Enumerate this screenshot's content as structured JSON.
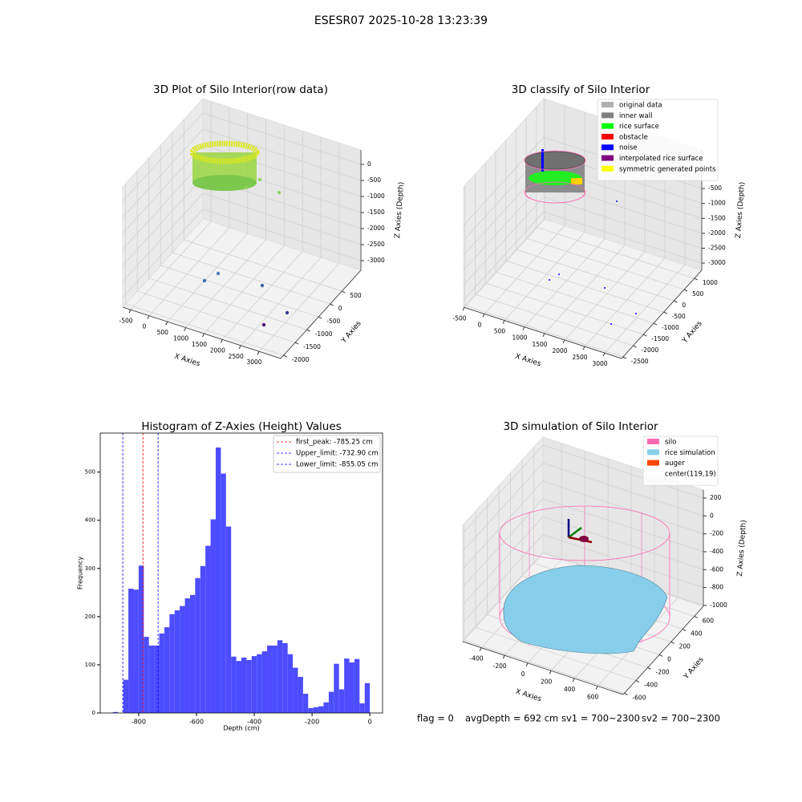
{
  "title": "ESESR07 2025-10-28 13:23:39",
  "status": [
    "flag = 0",
    "avgDepth = 692 cm",
    "sv1 = 700~2300",
    "sv2 = 700~2300"
  ],
  "chart_data": [
    {
      "type": "scatter3d",
      "title": "3D Plot of Silo Interior(row data)",
      "x_label": "X Axies",
      "y_label": "Y Axies",
      "z_label": "Z Axies (Depth)",
      "xlim": [
        -720,
        3590
      ],
      "ylim": [
        -2125,
        1315
      ],
      "zlim": [
        -3300,
        450
      ],
      "xticks": [
        -500,
        0,
        500,
        1000,
        1500,
        2000,
        2500,
        3000
      ],
      "yticks": [
        -2000,
        -1500,
        -1000,
        -500,
        0,
        500
      ],
      "zticks": [
        -3000,
        -2500,
        -2000,
        -1500,
        -1000,
        -500,
        0
      ],
      "grid": true
    },
    {
      "type": "scatter3d",
      "title": "3D classify of Silo Interior",
      "x_label": "X Axies",
      "y_label": "Y Axies",
      "z_label": "Z Axies (Depth)",
      "xlim": [
        -520,
        3420
      ],
      "ylim": [
        -2570,
        1360
      ],
      "zlim": [
        -3240,
        792
      ],
      "xticks": [
        -500,
        0,
        500,
        1000,
        1500,
        2000,
        2500,
        3000
      ],
      "yticks": [
        -2500,
        -2000,
        -1500,
        -1000,
        -500,
        0,
        500,
        1000
      ],
      "zticks": [
        -3000,
        -2500,
        -2000,
        -1500,
        -1000,
        -500
      ],
      "grid": true,
      "legend_loc": "upper right",
      "legend": [
        {
          "name": "original data",
          "color": "#b0b0b0"
        },
        {
          "name": "inner wall",
          "color": "#808080"
        },
        {
          "name": "rice surface",
          "color": "#00ff00"
        },
        {
          "name": "obstacle",
          "color": "#ff0000"
        },
        {
          "name": "noise",
          "color": "#0000ff"
        },
        {
          "name": "interpolated rice surface",
          "color": "#800080"
        },
        {
          "name": "symmetric generated points",
          "color": "#ffff00"
        }
      ]
    },
    {
      "type": "histogram",
      "title": "Histogram of Z-Axies (Height) Values",
      "x_label": "Depth (cm)",
      "y_label": "Frequency",
      "color": "#4d4dff",
      "xlim": [
        -933,
        44
      ],
      "ylim": [
        0,
        581
      ],
      "xticks": [
        -800,
        -600,
        -400,
        -200,
        0
      ],
      "yticks": [
        0,
        100,
        200,
        300,
        400,
        500
      ],
      "bins": [
        -889.0,
        -871.22,
        -853.44,
        -835.66,
        -817.88,
        -800.1,
        -782.32,
        -764.54,
        -746.76,
        -728.98,
        -711.2,
        -693.42,
        -675.64,
        -657.86,
        -640.08,
        -622.3,
        -604.52,
        -586.74,
        -568.96,
        -551.18,
        -533.4,
        -515.62,
        -497.84,
        -480.06,
        -462.28,
        -444.5,
        -426.72,
        -408.94,
        -391.16,
        -373.38,
        -355.6,
        -337.82,
        -320.04,
        -302.26,
        -284.48,
        -266.7,
        -248.92,
        -231.14,
        -213.36,
        -195.58,
        -177.8,
        -160.02,
        -142.24,
        -124.46,
        -106.68,
        -88.9,
        -71.12,
        -53.34,
        -35.56,
        -17.78,
        0
      ],
      "counts": [
        2,
        0,
        69,
        258,
        256,
        306,
        158,
        140,
        140,
        165,
        178,
        205,
        213,
        222,
        238,
        245,
        280,
        305,
        347,
        402,
        551,
        497,
        387,
        117,
        108,
        115,
        110,
        118,
        122,
        128,
        140,
        140,
        151,
        145,
        122,
        94,
        75,
        40,
        10,
        12,
        14,
        22,
        44,
        102,
        49,
        113,
        105,
        112,
        20,
        62
      ],
      "legend_loc": "upper right",
      "vlines": [
        {
          "name": "first_peak: -785.25 cm",
          "value": -785.25,
          "color": "#ff0000"
        },
        {
          "name": "Upper_limit: -732.90 cm",
          "value": -732.9,
          "color": "#0000ff"
        },
        {
          "name": "Lower_limit: -855.05 cm",
          "value": -855.05,
          "color": "#0000ff"
        }
      ]
    },
    {
      "type": "surface3d",
      "title": "3D simulation of Silo Interior",
      "x_label": "X Axies",
      "y_label": "Y Axies",
      "z_label": "Z Axies (Depth)",
      "xlim": [
        -560,
        820
      ],
      "ylim": [
        -620,
        755
      ],
      "zlim": [
        -1010,
        290
      ],
      "xticks": [
        -400,
        -200,
        0,
        200,
        400,
        600
      ],
      "yticks": [
        -600,
        -400,
        -200,
        0,
        200,
        400,
        600
      ],
      "zticks": [
        -1000,
        -800,
        -600,
        -400,
        -200,
        0,
        200
      ],
      "grid": true,
      "legend_loc": "upper right",
      "legend": [
        {
          "name": "silo",
          "color": "#ff69b4"
        },
        {
          "name": "rice simulation",
          "color": "#87ceeb"
        },
        {
          "name": "auger",
          "color": "#ff4500"
        },
        {
          "name": "center(119,19)",
          "color": "#ffffff"
        }
      ]
    }
  ]
}
